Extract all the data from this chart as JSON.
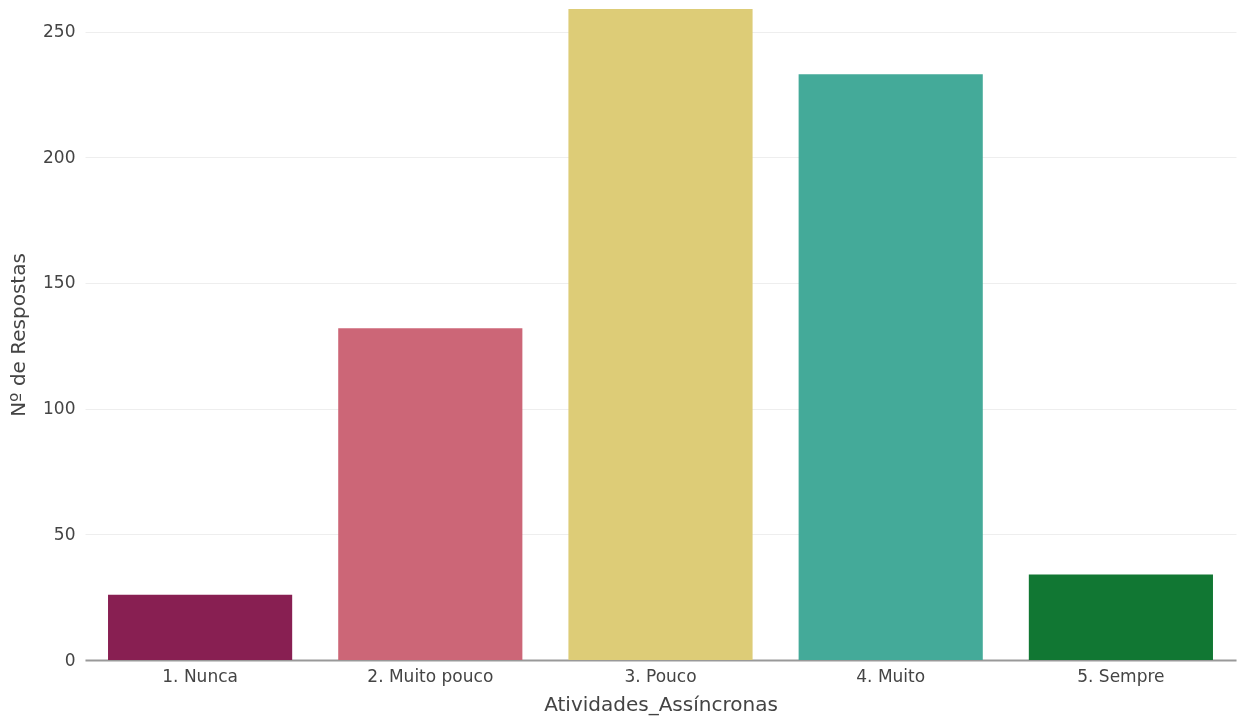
{
  "chart_data": {
    "type": "bar",
    "xlabel": "Atividades_Assíncronas",
    "ylabel": "Nº de Respostas",
    "categories": [
      "1. Nunca",
      "2. Muito pouco",
      "3. Pouco",
      "4. Muito",
      "5. Sempre"
    ],
    "values": [
      26,
      132,
      259,
      233,
      34
    ],
    "colors": [
      "#881f52",
      "#cc6677",
      "#ddcc77",
      "#44aa99",
      "#117733"
    ],
    "ylim": [
      0,
      259
    ],
    "yticks": [
      0,
      50,
      100,
      150,
      200,
      250
    ],
    "grid": "y"
  }
}
